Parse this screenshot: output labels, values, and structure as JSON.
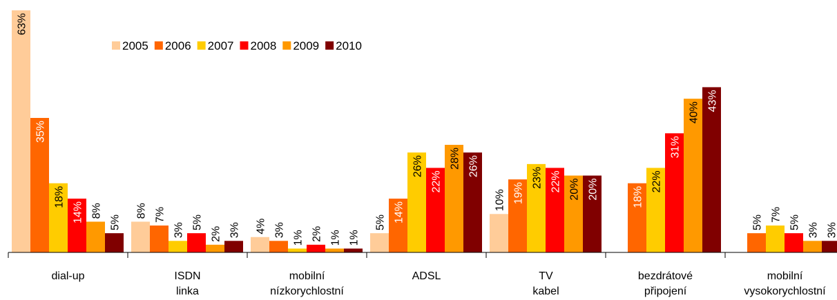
{
  "chart_data": {
    "type": "bar",
    "categories": [
      "dial-up",
      "ISDN linka",
      "mobilní nízkorychlostní",
      "ADSL",
      "TV kabel",
      "bezdrátové připojení",
      "mobilní vysokorychlostní"
    ],
    "series": [
      {
        "name": "2005",
        "color": "#FFCC99",
        "values": [
          63,
          8,
          4,
          5,
          10,
          null,
          null
        ],
        "value_labels": [
          "63%",
          "8%",
          "4%",
          "5%",
          "10%",
          null,
          null
        ]
      },
      {
        "name": "2006",
        "color": "#FF6600",
        "values": [
          35,
          7,
          3,
          14,
          19,
          18,
          5
        ],
        "value_labels": [
          "35%",
          "7%",
          "3%",
          "14%",
          "19%",
          "18%",
          "5%"
        ]
      },
      {
        "name": "2007",
        "color": "#FFCC00",
        "values": [
          18,
          3,
          1,
          26,
          23,
          22,
          7
        ],
        "value_labels": [
          "18%",
          "3%",
          "1%",
          "26%",
          "23%",
          "22%",
          "7%"
        ]
      },
      {
        "name": "2008",
        "color": "#FF0000",
        "values": [
          14,
          5,
          2,
          22,
          22,
          31,
          5
        ],
        "value_labels": [
          "14%",
          "5%",
          "2%",
          "22%",
          "22%",
          "31%",
          "5%"
        ]
      },
      {
        "name": "2009",
        "color": "#FF9900",
        "values": [
          8,
          2,
          1,
          28,
          20,
          40,
          3
        ],
        "value_labels": [
          "8%",
          "2%",
          "1%",
          "28%",
          "20%",
          "40%",
          "3%"
        ]
      },
      {
        "name": "2010",
        "color": "#800000",
        "values": [
          5,
          3,
          1,
          26,
          20,
          43,
          3
        ],
        "value_labels": [
          "5%",
          "3%",
          "1%",
          "26%",
          "20%",
          "43%",
          "3%"
        ]
      }
    ],
    "ylim": [
      0,
      63
    ],
    "legend": "top"
  }
}
